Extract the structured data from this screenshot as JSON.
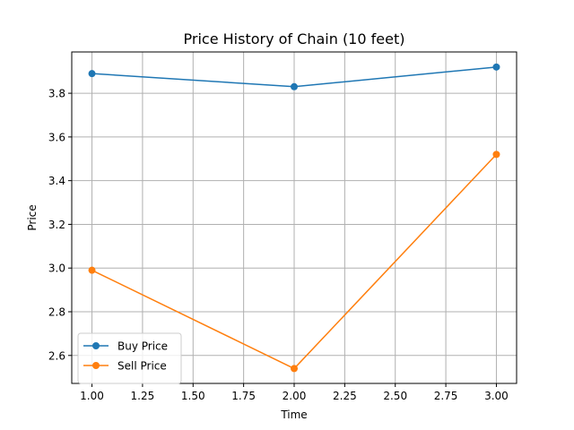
{
  "chart_data": {
    "type": "line",
    "title": "Price History of Chain (10 feet)",
    "xlabel": "Time",
    "ylabel": "Price",
    "x": [
      1.0,
      2.0,
      3.0
    ],
    "xlim": [
      0.9,
      3.1
    ],
    "ylim": [
      2.472,
      3.989
    ],
    "xticks": [
      "1.00",
      "1.25",
      "1.50",
      "1.75",
      "2.00",
      "2.25",
      "2.50",
      "2.75",
      "3.00"
    ],
    "yticks": [
      "2.6",
      "2.8",
      "3.0",
      "3.2",
      "3.4",
      "3.6",
      "3.8"
    ],
    "grid": true,
    "legend_position": "lower-left",
    "series": [
      {
        "name": "Buy Price",
        "values": [
          3.89,
          3.83,
          3.92
        ],
        "color": "#1f77b4",
        "marker": "circle"
      },
      {
        "name": "Sell Price",
        "values": [
          2.99,
          2.54,
          3.52
        ],
        "color": "#ff7f0e",
        "marker": "circle"
      }
    ]
  }
}
